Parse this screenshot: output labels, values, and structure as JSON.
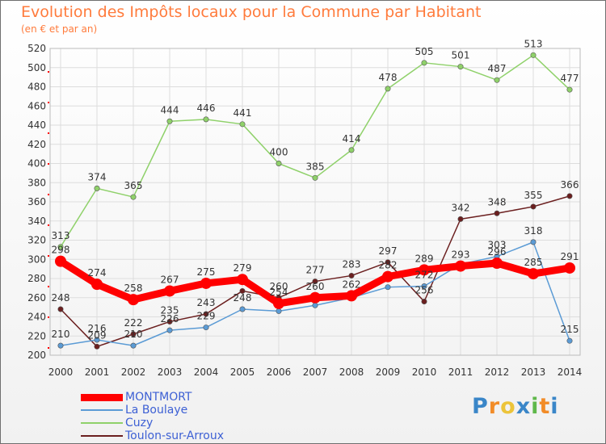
{
  "header": {
    "title": "Evolution des Impôts locaux pour la Commune par Habitant",
    "subtitle": "(en € et par an)"
  },
  "logo": {
    "text": "Proxiti",
    "colors": [
      "#3a86c8",
      "#f28c28",
      "#ecc43a",
      "#3a86c8",
      "#5fb84a",
      "#f28c28",
      "#3a86c8"
    ]
  },
  "colors": {
    "title": "#ff7b3c",
    "legend_text": "#3d60d4",
    "grid": "#dddddd"
  },
  "chart_data": {
    "type": "line",
    "title": "Evolution des Impôts locaux pour la Commune par Habitant",
    "subtitle": "(en € et par an)",
    "x": [
      "2000",
      "2001",
      "2002",
      "2003",
      "2004",
      "2005",
      "2006",
      "2007",
      "2008",
      "2009",
      "2010",
      "2011",
      "2012",
      "2013",
      "2014"
    ],
    "ylim": [
      200,
      520
    ],
    "yticks": [
      200,
      220,
      240,
      260,
      280,
      300,
      320,
      340,
      360,
      380,
      400,
      420,
      440,
      460,
      480,
      500,
      520
    ],
    "grid": true,
    "legend": "bottom-left",
    "series": [
      {
        "name": "MONTMORT",
        "color": "#ff0000",
        "values": [
          298,
          274,
          258,
          267,
          275,
          279,
          254,
          260,
          262,
          282,
          289,
          293,
          296,
          285,
          291
        ],
        "labels": [
          "298",
          "274",
          "258",
          "267",
          "275",
          "279",
          "254",
          "260",
          "262",
          "282",
          "289",
          "293",
          "296",
          "285",
          "291"
        ]
      },
      {
        "name": "La Boulaye",
        "color": "#5b9bd5",
        "values": [
          210,
          216,
          210,
          226,
          229,
          248,
          246,
          252,
          260,
          271,
          272,
          295,
          303,
          318,
          215
        ],
        "labels": [
          "210",
          "216",
          "210",
          "226",
          "229",
          "248",
          "",
          "",
          "",
          "",
          "272",
          "",
          "303",
          "318",
          "215"
        ]
      },
      {
        "name": "Cuzy",
        "color": "#8fd16a",
        "values": [
          313,
          374,
          365,
          444,
          446,
          441,
          400,
          385,
          414,
          478,
          505,
          501,
          487,
          513,
          477
        ],
        "labels": [
          "313",
          "374",
          "365",
          "444",
          "446",
          "441",
          "400",
          "385",
          "414",
          "478",
          "505",
          "501",
          "487",
          "513",
          "477"
        ]
      },
      {
        "name": "Toulon-sur-Arroux",
        "color": "#6b1f1f",
        "values": [
          248,
          209,
          222,
          235,
          243,
          267,
          260,
          277,
          283,
          297,
          256,
          342,
          348,
          355,
          366
        ],
        "labels": [
          "248",
          "209",
          "222",
          "235",
          "243",
          "",
          "260",
          "277",
          "283",
          "297",
          "256",
          "342",
          "348",
          "355",
          "366"
        ]
      }
    ]
  }
}
